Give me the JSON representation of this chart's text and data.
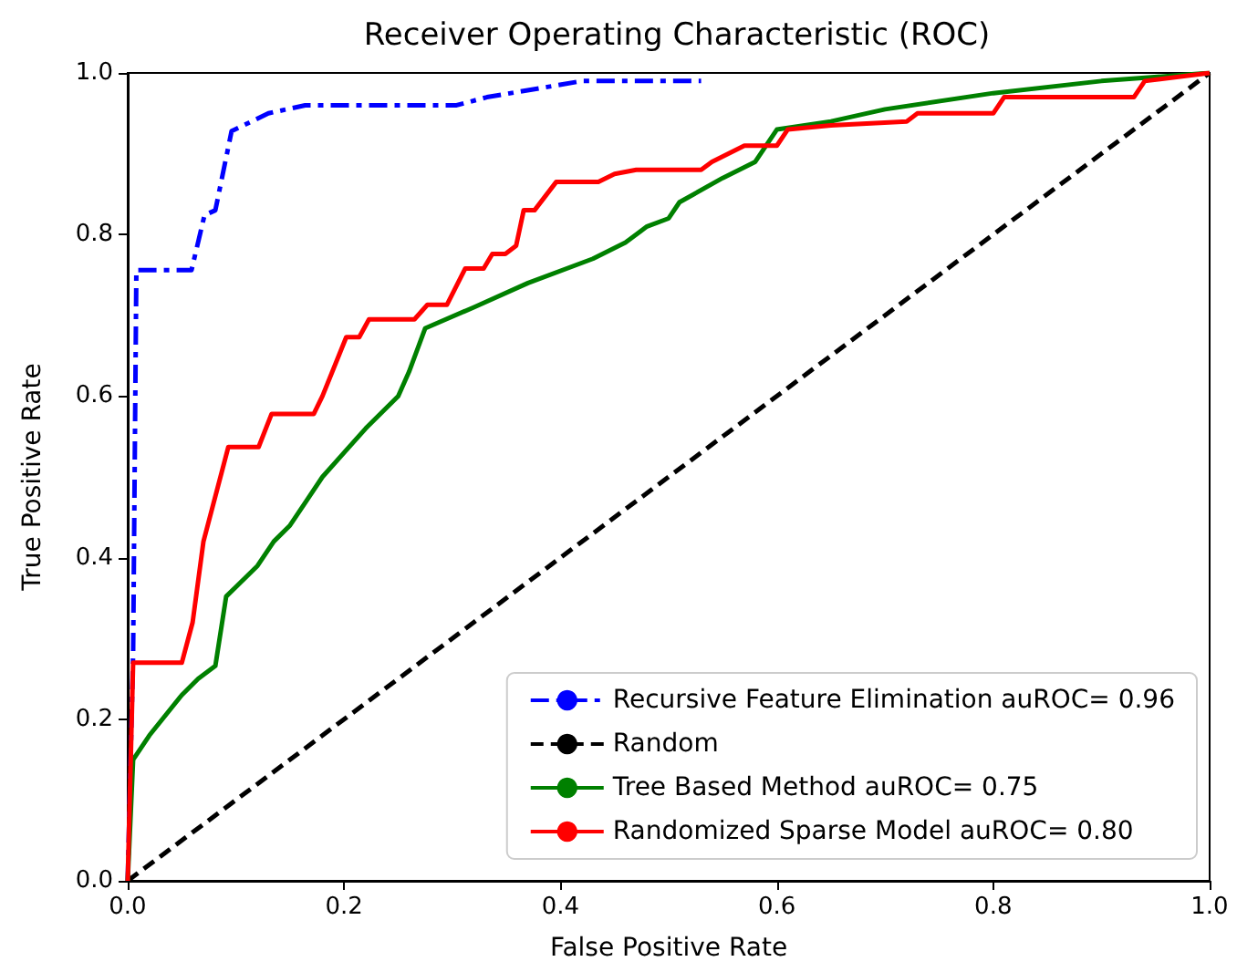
{
  "chart_data": {
    "type": "line",
    "title": "Receiver Operating Characteristic (ROC)",
    "xlabel": "False Positive Rate",
    "ylabel": "True Positive Rate",
    "xlim": [
      0,
      1
    ],
    "ylim": [
      0,
      1
    ],
    "xticks": [
      {
        "value": 0,
        "label": "0.0"
      },
      0.2,
      0.4,
      0.6,
      0.8,
      {
        "value": 1,
        "label": "1.0"
      }
    ],
    "yticks": [
      {
        "value": 0,
        "label": "0.0"
      },
      0.2,
      0.4,
      0.6,
      0.8,
      {
        "value": 1,
        "label": "1.0"
      }
    ],
    "grid": false,
    "legend": "bottom right",
    "marker": "none",
    "series": [
      {
        "name": "Recursive Feature Elimination auROC= 0.96",
        "color": "#0000ff",
        "line_style": "dashdot",
        "x": [
          0,
          0.005,
          0.008,
          0.059,
          0.071,
          0.081,
          0.096,
          0.11,
          0.13,
          0.164,
          0.304,
          0.332,
          0.42,
          0.53
        ],
        "values": [
          0,
          0.28,
          0.756,
          0.756,
          0.824,
          0.83,
          0.928,
          0.937,
          0.95,
          0.96,
          0.96,
          0.97,
          0.99,
          0.99
        ]
      },
      {
        "name": "Random",
        "color": "#000000",
        "line_style": "dashed",
        "x": [
          0,
          1
        ],
        "values": [
          0,
          1
        ]
      },
      {
        "name": "Tree Based Method auROC= 0.75",
        "color": "#008000",
        "line_style": "solid",
        "x": [
          0,
          0.005,
          0.02,
          0.05,
          0.065,
          0.081,
          0.091,
          0.12,
          0.135,
          0.15,
          0.165,
          0.18,
          0.2,
          0.22,
          0.25,
          0.26,
          0.275,
          0.32,
          0.37,
          0.43,
          0.46,
          0.48,
          0.5,
          0.51,
          0.55,
          0.58,
          0.6,
          0.65,
          0.7,
          0.8,
          0.9,
          1
        ],
        "values": [
          0,
          0.15,
          0.18,
          0.23,
          0.25,
          0.266,
          0.352,
          0.39,
          0.42,
          0.44,
          0.47,
          0.5,
          0.53,
          0.56,
          0.6,
          0.63,
          0.684,
          0.71,
          0.74,
          0.77,
          0.79,
          0.81,
          0.82,
          0.84,
          0.87,
          0.89,
          0.93,
          0.94,
          0.955,
          0.975,
          0.99,
          1
        ]
      },
      {
        "name": "Randomized Sparse Model auROC= 0.80",
        "color": "#ff0000",
        "line_style": "solid",
        "x": [
          0,
          0.005,
          0.05,
          0.06,
          0.07,
          0.093,
          0.121,
          0.133,
          0.172,
          0.18,
          0.202,
          0.214,
          0.223,
          0.265,
          0.277,
          0.295,
          0.312,
          0.329,
          0.337,
          0.349,
          0.359,
          0.366,
          0.376,
          0.396,
          0.435,
          0.45,
          0.47,
          0.53,
          0.54,
          0.57,
          0.6,
          0.61,
          0.65,
          0.72,
          0.73,
          0.8,
          0.81,
          0.93,
          0.94,
          1
        ],
        "values": [
          0,
          0.27,
          0.27,
          0.32,
          0.42,
          0.537,
          0.537,
          0.578,
          0.578,
          0.6,
          0.673,
          0.673,
          0.695,
          0.695,
          0.713,
          0.713,
          0.758,
          0.758,
          0.776,
          0.776,
          0.786,
          0.83,
          0.83,
          0.865,
          0.865,
          0.875,
          0.88,
          0.88,
          0.89,
          0.91,
          0.91,
          0.93,
          0.935,
          0.94,
          0.95,
          0.95,
          0.97,
          0.97,
          0.99,
          1
        ]
      }
    ]
  }
}
